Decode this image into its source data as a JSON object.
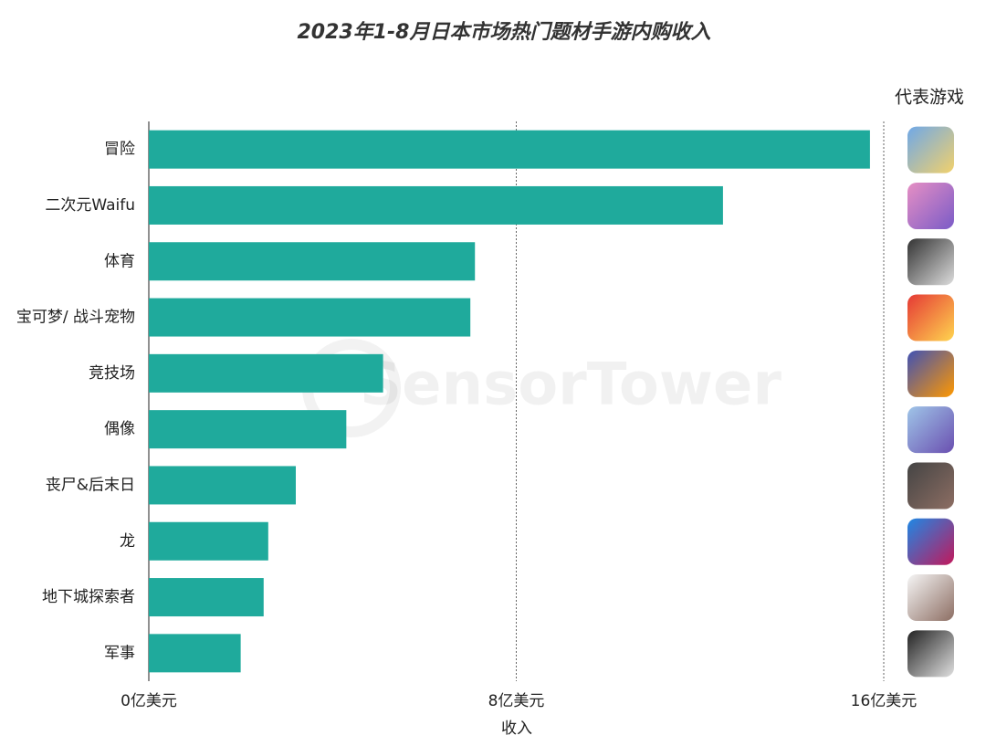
{
  "chart_data": {
    "type": "hbar",
    "title": "2023年1-8月日本市场热门题材手游内购收入",
    "x_label": "收入",
    "side_header": "代表游戏",
    "watermark": "SensorTower",
    "categories": [
      "冒险",
      "二次元Waifu",
      "体育",
      "宝可梦/ 战斗宠物",
      "竞技场",
      "偶像",
      "丧尸&后末日",
      "龙",
      "地下城探索者",
      "军事"
    ],
    "values": [
      15.7,
      12.5,
      7.1,
      7.0,
      5.1,
      4.3,
      3.2,
      2.6,
      2.5,
      2.0
    ],
    "color": "#1faa9c",
    "xlim": [
      0,
      16
    ],
    "xticks": [
      {
        "value": 0,
        "label": "0亿美元"
      },
      {
        "value": 8,
        "label": "8亿美元"
      },
      {
        "value": 16,
        "label": "16亿美元"
      }
    ],
    "grid": true
  }
}
